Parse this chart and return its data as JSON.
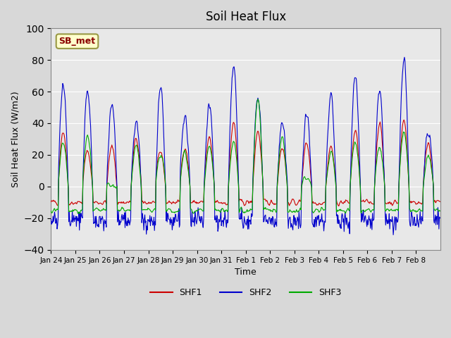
{
  "title": "Soil Heat Flux",
  "ylabel": "Soil Heat Flux (W/m2)",
  "xlabel": "Time",
  "ylim": [
    -40,
    100
  ],
  "yticks": [
    -40,
    -20,
    0,
    20,
    40,
    60,
    80,
    100
  ],
  "fig_bg_color": "#d8d8d8",
  "plot_bg_color": "#e8e8e8",
  "colors": {
    "SHF1": "#cc0000",
    "SHF2": "#0000cc",
    "SHF3": "#00aa00"
  },
  "legend_label": "SB_met",
  "legend_bg": "#ffffcc",
  "legend_border": "#999944",
  "n_days": 16,
  "x_tick_labels": [
    "Jan 24",
    "Jan 25",
    "Jan 26",
    "Jan 27",
    "Jan 28",
    "Jan 29",
    "Jan 30",
    "Jan 31",
    "Feb 1",
    "Feb 2",
    "Feb 3",
    "Feb 4",
    "Feb 5",
    "Feb 6",
    "Feb 7",
    "Feb 8"
  ],
  "shf2_amps": [
    65,
    60,
    50,
    42,
    63,
    45,
    51,
    76,
    58,
    40,
    45,
    59,
    71,
    59,
    81,
    35
  ],
  "shf1_amps": [
    35,
    22,
    25,
    30,
    22,
    25,
    30,
    40,
    35,
    25,
    28,
    25,
    35,
    40,
    42,
    28
  ],
  "shf3_amps": [
    28,
    32,
    0,
    25,
    20,
    22,
    25,
    28,
    55,
    30,
    6,
    22,
    28,
    25,
    35,
    20
  ],
  "seed": 42
}
